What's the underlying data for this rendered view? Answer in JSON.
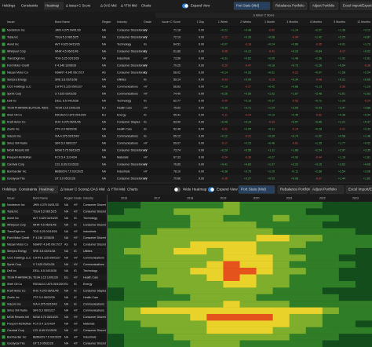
{
  "tabs": [
    "Holdings",
    "Constraints",
    "Heatmap",
    "Δ Issuer C Score",
    "Δ OAS Mid",
    "Δ YTM Mid",
    "Charts"
  ],
  "toggles": {
    "expand_view": "Expand View",
    "wide_heatmap": "Wide Heatmap"
  },
  "buttons": [
    "Port Stats (Mid)",
    "Rebalance Portfolio",
    "Adjust Portfolio",
    "Excel Import/Export"
  ],
  "table": {
    "group_header": "Δ Issuer C Score",
    "columns": [
      "Issuer",
      "Bond Name",
      "Region",
      "Industry",
      "Grade",
      "Issuer C Score",
      "1 Day",
      "1 Week",
      "2 Weeks",
      "1 Month",
      "3 Months",
      "6 Months",
      "9 Months",
      "12 Months"
    ],
    "rows": [
      [
        "Nordstrom Inc",
        "JWN 4.375 04/01/30",
        "NA",
        "Consumer Discretionary",
        "HY",
        "71.18",
        "0.00",
        "+0.21",
        "+0.48",
        "-0.62",
        "+1.14",
        "+2.07",
        "+1.36",
        "+3.12"
      ],
      [
        "Tesla Inc",
        "TSLA 5.3 08/15/25",
        "NA",
        "Consumer Discretionary",
        "HY",
        "72.19",
        "0.00",
        "-0.12",
        "+0.33",
        "+0.58",
        "-0.94",
        "+1.42",
        "+2.25",
        "+0.87"
      ],
      [
        "Avnet Inc",
        "AVT 4.625 04/15/26",
        "NA",
        "Technology",
        "IG",
        "64.51",
        "0.00",
        "+0.07",
        "-0.18",
        "+0.24",
        "+0.66",
        "-0.35",
        "+0.91",
        "+1.73"
      ],
      [
        "Whirlpool Corp",
        "WHR 4.5 06/01/46",
        "NA",
        "Consumer Discretionary",
        "IG",
        "61.86",
        "0.00",
        "-0.05",
        "+0.12",
        "-0.41",
        "+0.29",
        "+0.84",
        "-0.17",
        "+0.52"
      ],
      [
        "TransDigm Inc",
        "TDG 6.25 03/15/26",
        "NA",
        "Industrials",
        "HY",
        "73.56",
        "0.00",
        "+0.31",
        "+0.62",
        "+0.95",
        "+1.48",
        "+2.36",
        "+1.92",
        "+2.81"
      ],
      [
        "Ford Motor Credit",
        "F 4.346 12/08/26",
        "NA",
        "Consumer Discretionary",
        "HY",
        "70.25",
        "0.00",
        "-0.22",
        "-0.47",
        "+0.18",
        "+0.73",
        "+1.26",
        "+0.64",
        "-0.38"
      ],
      [
        "Nissan Motor Co",
        "NSANY 4.345 09/17/27",
        "AS",
        "Consumer Discretionary",
        "IG",
        "68.02",
        "0.00",
        "+0.14",
        "+0.26",
        "+0.51",
        "-0.22",
        "+0.97",
        "+1.58",
        "+2.04"
      ],
      [
        "Sempra Energy",
        "SRE 3.8 02/01/38",
        "NA",
        "Utilities",
        "IG",
        "59.14",
        "0.00",
        "-0.03",
        "+0.09",
        "-0.15",
        "+0.34",
        "-0.48",
        "+0.21",
        "+0.66"
      ],
      [
        "CCO Holdings LLC",
        "CHTR 5.125 05/01/27",
        "NA",
        "Communications",
        "HY",
        "66.83",
        "0.00",
        "+0.18",
        "-0.27",
        "+0.42",
        "+0.88",
        "+1.13",
        "-0.56",
        "+1.29"
      ],
      [
        "Sprint Corp",
        "S 7.625 03/01/26",
        "NA",
        "Communications",
        "HY",
        "74.40",
        "0.00",
        "+0.26",
        "+0.55",
        "+1.02",
        "+1.67",
        "+2.48",
        "+3.01",
        "+2.63"
      ],
      [
        "Dell Inc",
        "DELL 6.5 04/15/38",
        "NA",
        "Technology",
        "IG",
        "62.77",
        "0.00",
        "-0.09",
        "+0.16",
        "+0.37",
        "-0.53",
        "+0.72",
        "+1.05",
        "-0.24"
      ],
      [
        "TEVA PHARMACEUTICAL INDS",
        "TEVA 3.15 10/01/26",
        "EU",
        "Health Care",
        "HY",
        "75.92",
        "0.00",
        "+0.35",
        "+0.71",
        "+1.24",
        "+2.06",
        "+2.93",
        "+3.47",
        "+3.88"
      ],
      [
        "Shell Oil Co",
        "RDSALN 2.875 05/10/26",
        "EU",
        "Energy",
        "IG",
        "55.31",
        "0.00",
        "-0.11",
        "-0.29",
        "+0.13",
        "+0.45",
        "-0.62",
        "+0.38",
        "+0.94"
      ],
      [
        "Kraft Heinz Co",
        "KHC 4.375 06/01/46",
        "NA",
        "Consumer Staples",
        "IG",
        "63.90",
        "0.00",
        "+0.08",
        "+0.19",
        "-0.33",
        "+0.57",
        "+0.86",
        "+1.21",
        "+0.47"
      ],
      [
        "Zoetis Inc",
        "ZTS 3.9 08/20/28",
        "NA",
        "Health Care",
        "IG",
        "52.48",
        "0.00",
        "-0.02",
        "+0.05",
        "+0.11",
        "-0.19",
        "+0.28",
        "-0.41",
        "+0.33"
      ],
      [
        "Viacom Inc",
        "VIA 4.375 03/15/43",
        "NA",
        "Communications",
        "IG",
        "65.12",
        "0.00",
        "+0.12",
        "-0.21",
        "+0.39",
        "+0.74",
        "+1.02",
        "+0.58",
        "+1.46"
      ],
      [
        "Sirius XM Radio",
        "SIRI 5.0 08/01/27",
        "NA",
        "Communications",
        "HY",
        "69.07",
        "0.00",
        "-0.17",
        "+0.23",
        "+0.46",
        "-0.81",
        "+1.35",
        "+1.77",
        "+0.92"
      ],
      [
        "MGM Resorts Intl",
        "MGM 5.75 06/15/25",
        "NA",
        "Consumer Discretionary",
        "HY",
        "73.74",
        "0.00",
        "+0.29",
        "+0.58",
        "+1.11",
        "+1.86",
        "+2.54",
        "+2.97",
        "+3.35"
      ],
      [
        "Freeport-McMoRan",
        "FCX 5.4 11/14/34",
        "NA",
        "Materials",
        "HY",
        "67.33",
        "0.00",
        "-0.24",
        "-0.36",
        "+0.27",
        "+0.93",
        "-0.44",
        "+1.18",
        "+1.61"
      ],
      [
        "Carnival Corp",
        "CCL 6.65 01/15/28",
        "NA",
        "Consumer Discretionary",
        "HY",
        "76.85",
        "0.00",
        "+0.41",
        "+0.83",
        "+1.37",
        "+2.22",
        "+3.15",
        "+3.62",
        "+4.08"
      ],
      [
        "Bombardier Inc",
        "BBDBCN 7.5 03/15/25",
        "NA",
        "Industrials",
        "HY",
        "78.10",
        "0.00",
        "+0.38",
        "+0.76",
        "+1.29",
        "+2.11",
        "+2.88",
        "+3.54",
        "+3.96"
      ],
      [
        "Goodyear Tire",
        "GT 5.0 05/31/26",
        "NA",
        "Consumer Discretionary",
        "HY",
        "70.66",
        "0.00",
        "-0.15",
        "+0.27",
        "+0.53",
        "+0.98",
        "-0.37",
        "+1.44",
        "+1.82"
      ]
    ]
  },
  "heatmap": {
    "years": [
      "2016",
      "2017",
      "2018",
      "2019",
      "2020",
      "2021",
      "2022",
      "2023"
    ],
    "palette": [
      "#134d1c",
      "#2f7d27",
      "#7fae2c",
      "#e9d22a",
      "#e5531c"
    ],
    "levels": [
      [
        0,
        0,
        1,
        1,
        1,
        1,
        1,
        2,
        1,
        1,
        1,
        1,
        1,
        0,
        0,
        0
      ],
      [
        0,
        1,
        1,
        1,
        2,
        2,
        2,
        2,
        1,
        1,
        1,
        1,
        0,
        0,
        0,
        0
      ],
      [
        1,
        1,
        1,
        1,
        1,
        2,
        2,
        1,
        1,
        1,
        2,
        1,
        1,
        1,
        0,
        0
      ],
      [
        0,
        0,
        1,
        1,
        1,
        2,
        2,
        2,
        2,
        1,
        1,
        1,
        1,
        0,
        0,
        0
      ],
      [
        1,
        1,
        1,
        2,
        2,
        2,
        2,
        2,
        2,
        2,
        1,
        1,
        1,
        1,
        1,
        0
      ],
      [
        1,
        1,
        2,
        2,
        2,
        2,
        2,
        2,
        2,
        3,
        3,
        2,
        2,
        1,
        1,
        1
      ],
      [
        1,
        1,
        2,
        2,
        2,
        3,
        3,
        3,
        3,
        2,
        2,
        2,
        1,
        1,
        1,
        1
      ],
      [
        1,
        2,
        2,
        2,
        3,
        3,
        2,
        3,
        3,
        2,
        2,
        1,
        1,
        1,
        1,
        0
      ],
      [
        1,
        1,
        2,
        2,
        2,
        2,
        2,
        3,
        3,
        3,
        2,
        2,
        1,
        1,
        0,
        0
      ],
      [
        1,
        1,
        2,
        2,
        2,
        2,
        3,
        4,
        3,
        3,
        2,
        1,
        1,
        1,
        1,
        0
      ],
      [
        1,
        1,
        1,
        2,
        2,
        3,
        3,
        4,
        4,
        3,
        2,
        2,
        1,
        1,
        0,
        0
      ],
      [
        1,
        1,
        2,
        2,
        2,
        2,
        3,
        4,
        3,
        2,
        2,
        1,
        1,
        1,
        0,
        0
      ],
      [
        1,
        1,
        1,
        2,
        2,
        2,
        2,
        3,
        3,
        2,
        2,
        1,
        1,
        1,
        1,
        0
      ],
      [
        0,
        1,
        1,
        1,
        2,
        2,
        2,
        2,
        2,
        2,
        1,
        1,
        1,
        0,
        0,
        0
      ],
      [
        0,
        1,
        1,
        1,
        1,
        2,
        2,
        2,
        2,
        1,
        1,
        1,
        1,
        1,
        0,
        0
      ],
      [
        1,
        1,
        1,
        2,
        2,
        2,
        2,
        3,
        2,
        2,
        2,
        1,
        1,
        1,
        1,
        1
      ],
      [
        1,
        2,
        3,
        3,
        3,
        3,
        3,
        3,
        3,
        3,
        3,
        3,
        3,
        2,
        1,
        1
      ],
      [
        1,
        2,
        2,
        2,
        2,
        3,
        4,
        4,
        4,
        4,
        3,
        2,
        2,
        1,
        1,
        1
      ],
      [
        1,
        1,
        2,
        2,
        2,
        2,
        3,
        3,
        3,
        3,
        3,
        2,
        2,
        1,
        1,
        0
      ],
      [
        1,
        1,
        1,
        2,
        2,
        2,
        3,
        3,
        3,
        3,
        2,
        2,
        1,
        1,
        1,
        1
      ],
      [
        0,
        1,
        1,
        1,
        2,
        2,
        2,
        2,
        2,
        2,
        2,
        1,
        1,
        1,
        0,
        0
      ],
      [
        0,
        1,
        1,
        1,
        1,
        2,
        2,
        2,
        1,
        1,
        1,
        1,
        1,
        0,
        0,
        0
      ]
    ]
  }
}
